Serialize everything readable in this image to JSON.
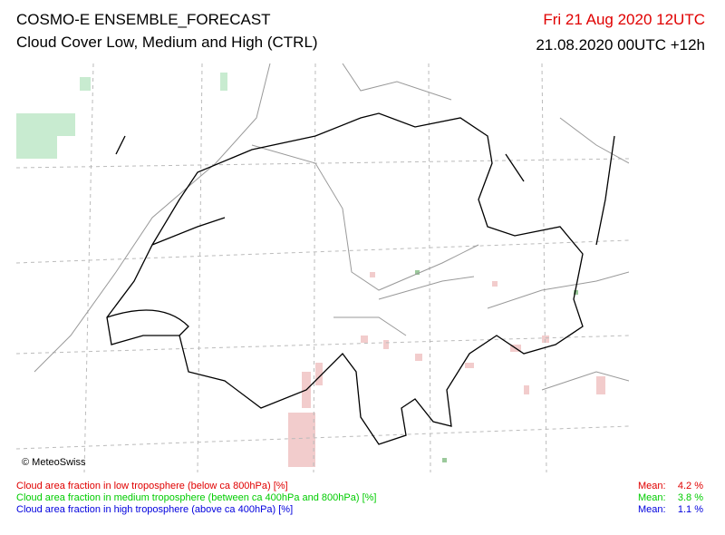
{
  "header": {
    "title": "COSMO-E ENSEMBLE_FORECAST",
    "subtitle": "Cloud Cover Low, Medium and High (CTRL)",
    "valid_time": "Fri 21 Aug 2020 12UTC",
    "run": "21.08.2020 00UTC +12h",
    "valid_color": "#e00000"
  },
  "map": {
    "credit": "© MeteoSwiss"
  },
  "legend": [
    {
      "text": "Cloud area fraction in low troposphere (below ca 800hPa) [%]",
      "color": "#e00000",
      "mean_label": "Mean:",
      "mean": "4.2 %"
    },
    {
      "text": "Cloud area fraction in medium troposphere (between ca 400hPa and 800hPa) [%]",
      "color": "#00cc00",
      "mean_label": "Mean:",
      "mean": "3.8 %"
    },
    {
      "text": "Cloud area fraction in high troposphere (above ca 400hPa) [%]",
      "color": "#0000dd",
      "mean_label": "Mean:",
      "mean": "1.1 %"
    }
  ]
}
